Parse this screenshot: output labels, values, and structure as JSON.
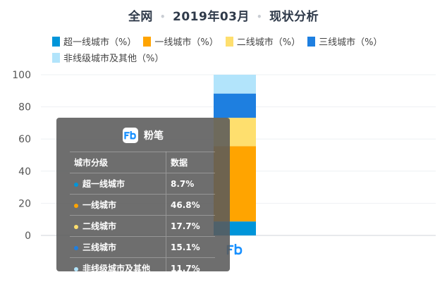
{
  "title": {
    "region": "全网",
    "date": "2019年03月",
    "name": "现状分析",
    "separator": "•"
  },
  "colors": {
    "tier_super1": "#0095d9",
    "tier_1": "#ffa400",
    "tier_2": "#fedf6e",
    "tier_3": "#1e7fe0",
    "tier_other": "#b2e4fb",
    "brand_blue": "#1890ff"
  },
  "tooltip": {
    "brand_name": "粉笔",
    "brand_icon": "fenbi-logo-icon",
    "header_category": "城市分级",
    "header_value": "数据",
    "rows": [
      {
        "label": "超一线城市",
        "value": "8.7%",
        "color": "#0095d9"
      },
      {
        "label": "一线城市",
        "value": "46.8%",
        "color": "#ffa400"
      },
      {
        "label": "二线城市",
        "value": "17.7%",
        "color": "#fedf6e"
      },
      {
        "label": "三线城市",
        "value": "15.1%",
        "color": "#1e7fe0"
      },
      {
        "label": "非线级城市及其他",
        "value": "11.7%",
        "color": "#b2e4fb"
      }
    ]
  },
  "chart_data": {
    "type": "bar",
    "stacked": true,
    "categories": [
      "粉笔"
    ],
    "category_icon": "fenbi-logo-icon",
    "series": [
      {
        "name": "超一线城市（%）",
        "values": [
          8.7
        ],
        "color": "#0095d9"
      },
      {
        "name": "一线城市（%）",
        "values": [
          46.8
        ],
        "color": "#ffa400"
      },
      {
        "name": "二线城市（%）",
        "values": [
          17.7
        ],
        "color": "#fedf6e"
      },
      {
        "name": "三线城市（%）",
        "values": [
          15.1
        ],
        "color": "#1e7fe0"
      },
      {
        "name": "非线级城市及其他（%）",
        "values": [
          11.7
        ],
        "color": "#b2e4fb"
      }
    ],
    "yticks": [
      "0",
      "20",
      "40",
      "60",
      "80",
      "100"
    ],
    "ylim": [
      0,
      100
    ],
    "grid": true,
    "legend_position": "top-left"
  }
}
